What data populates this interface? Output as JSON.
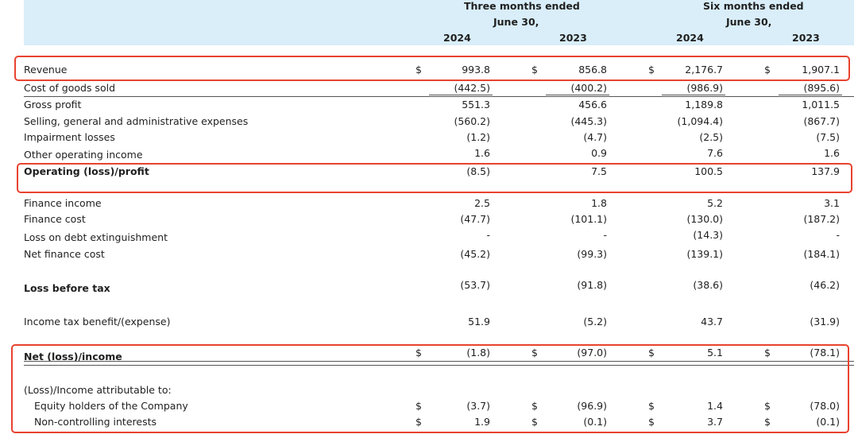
{
  "header": {
    "three_months": "Three months ended",
    "three_months_date": "June 30,",
    "six_months": "Six months ended",
    "six_months_date": "June 30,",
    "years": [
      "2024",
      "2023",
      "2024",
      "2023"
    ]
  },
  "currency_symbol": "$",
  "rows": [
    {
      "label": "Revenue",
      "values": [
        "993.8",
        "856.8",
        "2,176.7",
        "1,907.1"
      ]
    },
    {
      "label": "Cost of goods sold",
      "values": [
        "(442.5)",
        "(400.2)",
        "(986.9)",
        "(895.6)"
      ]
    },
    {
      "label": "Gross profit",
      "values": [
        "551.3",
        "456.6",
        "1,189.8",
        "1,011.5"
      ]
    },
    {
      "label": "Selling, general and administrative expenses",
      "values": [
        "(560.2)",
        "(445.3)",
        "(1,094.4)",
        "(867.7)"
      ]
    },
    {
      "label": "Impairment losses",
      "values": [
        "(1.2)",
        "(4.7)",
        "(2.5)",
        "(7.5)"
      ]
    },
    {
      "label": "Other operating income",
      "values": [
        "1.6",
        "0.9",
        "7.6",
        "1.6"
      ]
    },
    {
      "label": "Operating (loss)/profit",
      "values": [
        "(8.5)",
        "7.5",
        "100.5",
        "137.9"
      ]
    },
    {
      "label": "Finance income",
      "values": [
        "2.5",
        "1.8",
        "5.2",
        "3.1"
      ]
    },
    {
      "label": "Finance cost",
      "values": [
        "(47.7)",
        "(101.1)",
        "(130.0)",
        "(187.2)"
      ]
    },
    {
      "label": "Loss on debt extinguishment",
      "values": [
        "-",
        "-",
        "(14.3)",
        "-"
      ]
    },
    {
      "label": "Net finance cost",
      "values": [
        "(45.2)",
        "(99.3)",
        "(139.1)",
        "(184.1)"
      ]
    },
    {
      "label": "Loss before tax",
      "values": [
        "(53.7)",
        "(91.8)",
        "(38.6)",
        "(46.2)"
      ]
    },
    {
      "label": "Income tax benefit/(expense)",
      "values": [
        "51.9",
        "(5.2)",
        "43.7",
        "(31.9)"
      ]
    },
    {
      "label": "Net (loss)/income",
      "values": [
        "(1.8)",
        "(97.0)",
        "5.1",
        "(78.1)"
      ]
    },
    {
      "label": "(Loss)/Income attributable to:",
      "values": [
        "",
        "",
        "",
        ""
      ]
    },
    {
      "label": "Equity holders of the Company",
      "values": [
        "(3.7)",
        "(96.9)",
        "1.4",
        "(78.0)"
      ]
    },
    {
      "label": "Non-controlling interests",
      "values": [
        "1.9",
        "(0.1)",
        "3.7",
        "(0.1)"
      ]
    }
  ]
}
